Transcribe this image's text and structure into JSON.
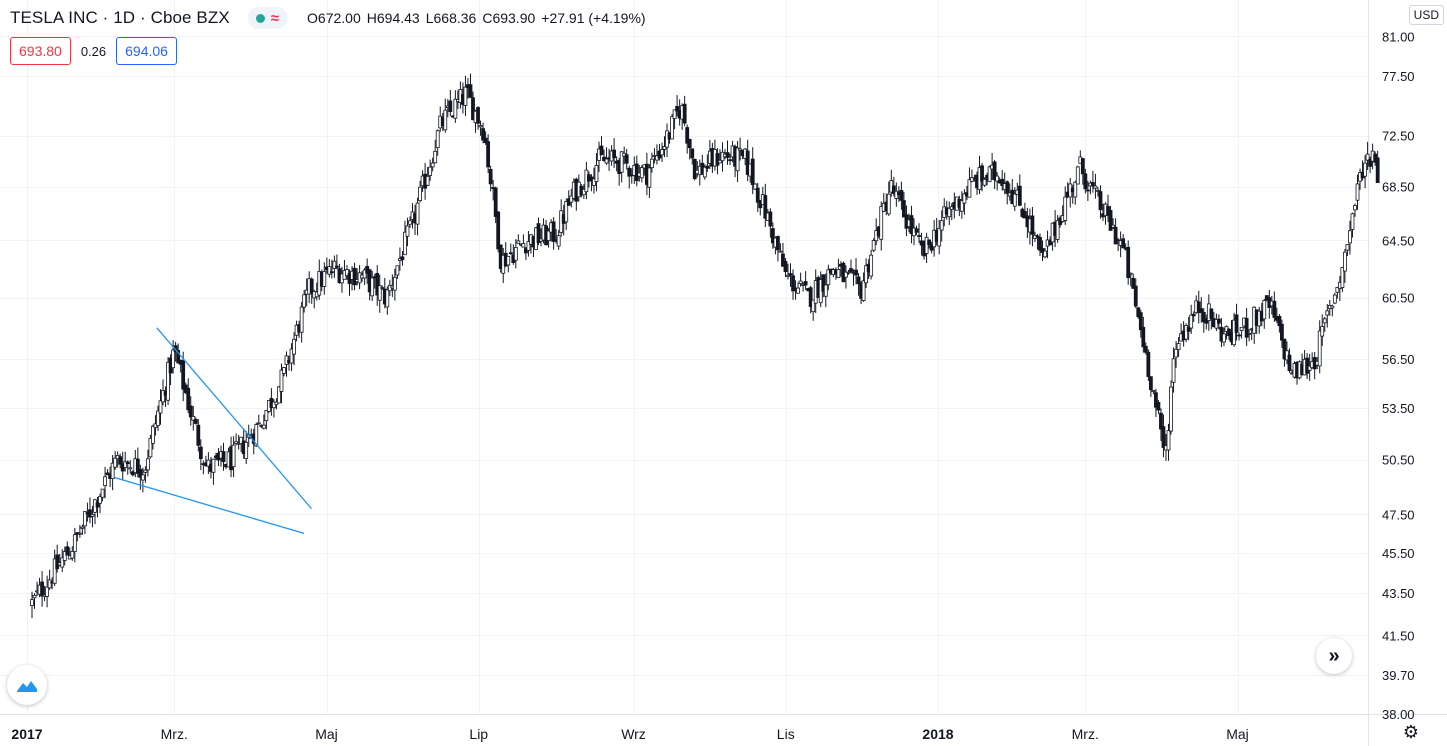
{
  "header": {
    "symbol_title": "TESLA INC · 1D · Cboe BZX",
    "ohlc": {
      "open_label": "O",
      "open": "672.00",
      "high_label": "H",
      "high": "694.43",
      "low_label": "L",
      "low": "668.36",
      "close_label": "C",
      "close": "693.90",
      "change": "+27.91 (+4.19%)"
    },
    "sell_price": "693.80",
    "spread": "0.26",
    "buy_price": "694.06",
    "currency": "USD",
    "status_icon": "market-open-dot",
    "wave_icon": "approx-wave-icon"
  },
  "colors": {
    "grid": "#f0f3fa",
    "candle_body": "#131722",
    "candle_up_fill": "#ffffff",
    "trendline": "#2196f3",
    "axis_text": "#131722",
    "sell": "#f23645",
    "buy": "#2962ff"
  },
  "chart_data": {
    "type": "candlestick",
    "title": "TESLA INC · 1D · Cboe BZX",
    "y_scale": "log",
    "ylim": [
      38.0,
      81.0
    ],
    "y_ticks": [
      "81.00",
      "77.50",
      "72.50",
      "68.50",
      "64.50",
      "60.50",
      "56.50",
      "53.50",
      "50.50",
      "47.50",
      "45.50",
      "43.50",
      "41.50",
      "39.70",
      "38.00"
    ],
    "x_ticks": [
      {
        "label": "2017",
        "date": "2017-01-01"
      },
      {
        "label": "Mrz.",
        "date": "2017-03-01"
      },
      {
        "label": "Maj",
        "date": "2017-05-01"
      },
      {
        "label": "Lip",
        "date": "2017-07-01"
      },
      {
        "label": "Wrz",
        "date": "2017-09-01"
      },
      {
        "label": "Lis",
        "date": "2017-11-01"
      },
      {
        "label": "2018",
        "date": "2018-01-01"
      },
      {
        "label": "Mrz.",
        "date": "2018-03-01"
      },
      {
        "label": "Maj",
        "date": "2018-05-01"
      }
    ],
    "xlim": [
      "2017-01-01",
      "2018-07-01"
    ],
    "grid": true,
    "close_path": [
      [
        "2017-01-03",
        43.0
      ],
      [
        "2017-01-20",
        46.0
      ],
      [
        "2017-02-06",
        50.5
      ],
      [
        "2017-02-17",
        50.0
      ],
      [
        "2017-03-01",
        57.0
      ],
      [
        "2017-03-08",
        53.0
      ],
      [
        "2017-03-14",
        50.0
      ],
      [
        "2017-03-24",
        50.5
      ],
      [
        "2017-04-04",
        52.5
      ],
      [
        "2017-04-14",
        55.5
      ],
      [
        "2017-04-24",
        61.0
      ],
      [
        "2017-05-04",
        62.5
      ],
      [
        "2017-05-15",
        62.0
      ],
      [
        "2017-05-25",
        60.5
      ],
      [
        "2017-06-05",
        66.0
      ],
      [
        "2017-06-16",
        73.5
      ],
      [
        "2017-06-26",
        76.0
      ],
      [
        "2017-07-03",
        73.0
      ],
      [
        "2017-07-10",
        63.0
      ],
      [
        "2017-07-20",
        64.5
      ],
      [
        "2017-08-01",
        65.0
      ],
      [
        "2017-08-08",
        68.0
      ],
      [
        "2017-08-18",
        70.5
      ],
      [
        "2017-08-25",
        70.5
      ],
      [
        "2017-09-06",
        69.5
      ],
      [
        "2017-09-15",
        72.5
      ],
      [
        "2017-09-20",
        75.0
      ],
      [
        "2017-09-26",
        69.5
      ],
      [
        "2017-10-06",
        71.0
      ],
      [
        "2017-10-16",
        70.5
      ],
      [
        "2017-10-24",
        66.5
      ],
      [
        "2017-11-01",
        62.0
      ],
      [
        "2017-11-10",
        60.5
      ],
      [
        "2017-11-20",
        62.5
      ],
      [
        "2017-12-01",
        61.0
      ],
      [
        "2017-12-13",
        68.5
      ],
      [
        "2017-12-26",
        63.5
      ],
      [
        "2018-01-05",
        66.5
      ],
      [
        "2018-01-16",
        69.0
      ],
      [
        "2018-01-26",
        69.5
      ],
      [
        "2018-02-05",
        66.5
      ],
      [
        "2018-02-12",
        63.0
      ],
      [
        "2018-02-20",
        67.0
      ],
      [
        "2018-02-27",
        70.0
      ],
      [
        "2018-03-07",
        67.0
      ],
      [
        "2018-03-16",
        64.0
      ],
      [
        "2018-03-27",
        55.5
      ],
      [
        "2018-04-02",
        50.5
      ],
      [
        "2018-04-06",
        57.5
      ],
      [
        "2018-04-16",
        60.0
      ],
      [
        "2018-04-26",
        58.0
      ],
      [
        "2018-05-04",
        58.5
      ],
      [
        "2018-05-14",
        60.0
      ],
      [
        "2018-05-23",
        55.5
      ],
      [
        "2018-06-01",
        56.5
      ],
      [
        "2018-06-12",
        62.5
      ],
      [
        "2018-06-20",
        70.0
      ],
      [
        "2018-06-25",
        71.5
      ],
      [
        "2018-06-27",
        66.0
      ]
    ],
    "trendlines": [
      {
        "from": [
          "2017-02-22",
          58.5
        ],
        "to": [
          "2017-04-25",
          47.8
        ]
      },
      {
        "from": [
          "2017-02-05",
          49.5
        ],
        "to": [
          "2017-04-22",
          46.5
        ]
      }
    ]
  }
}
